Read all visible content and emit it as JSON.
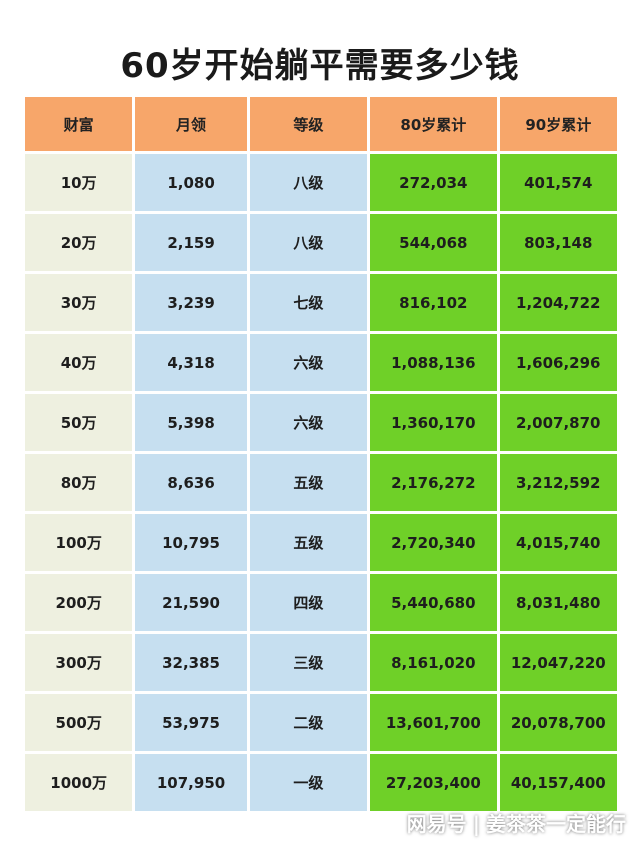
{
  "title": "60岁开始躺平需要多少钱",
  "table": {
    "headers": [
      "财富",
      "月领",
      "等级",
      "80岁累计",
      "90岁累计"
    ],
    "rows": [
      {
        "wealth": "10万",
        "monthly": "1,080",
        "level": "八级",
        "sum80": "272,034",
        "sum90": "401,574"
      },
      {
        "wealth": "20万",
        "monthly": "2,159",
        "level": "八级",
        "sum80": "544,068",
        "sum90": "803,148"
      },
      {
        "wealth": "30万",
        "monthly": "3,239",
        "level": "七级",
        "sum80": "816,102",
        "sum90": "1,204,722"
      },
      {
        "wealth": "40万",
        "monthly": "4,318",
        "level": "六级",
        "sum80": "1,088,136",
        "sum90": "1,606,296"
      },
      {
        "wealth": "50万",
        "monthly": "5,398",
        "level": "六级",
        "sum80": "1,360,170",
        "sum90": "2,007,870"
      },
      {
        "wealth": "80万",
        "monthly": "8,636",
        "level": "五级",
        "sum80": "2,176,272",
        "sum90": "3,212,592"
      },
      {
        "wealth": "100万",
        "monthly": "10,795",
        "level": "五级",
        "sum80": "2,720,340",
        "sum90": "4,015,740"
      },
      {
        "wealth": "200万",
        "monthly": "21,590",
        "level": "四级",
        "sum80": "5,440,680",
        "sum90": "8,031,480"
      },
      {
        "wealth": "300万",
        "monthly": "32,385",
        "level": "三级",
        "sum80": "8,161,020",
        "sum90": "12,047,220"
      },
      {
        "wealth": "500万",
        "monthly": "53,975",
        "level": "二级",
        "sum80": "13,601,700",
        "sum90": "20,078,700"
      },
      {
        "wealth": "1000万",
        "monthly": "107,950",
        "level": "一级",
        "sum80": "27,203,400",
        "sum90": "40,157,400"
      }
    ]
  },
  "watermark": {
    "brand": "网易号",
    "separator": "|",
    "author": "姜茶茶一定能行"
  },
  "colors": {
    "header_bg": "#f7a66a",
    "wealth_bg": "#eef0e0",
    "monthly_level_bg": "#c6dff0",
    "sum_bg": "#6fd028"
  }
}
